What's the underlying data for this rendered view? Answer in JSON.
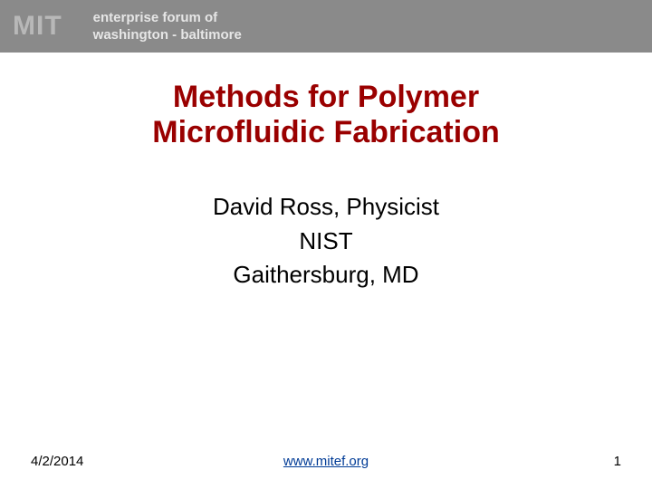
{
  "header": {
    "band_bg": "#8a8a8a",
    "mit_text": "MIT",
    "mit_color": "#b8b8b8",
    "mit_fontsize": 30,
    "forum_line1": "enterprise forum of",
    "forum_line2": "washington - baltimore",
    "forum_color": "#e6e6e6",
    "forum_fontsize": 15
  },
  "title": {
    "line1": "Methods for Polymer",
    "line2": "Microfluidic Fabrication",
    "color": "#9a0000",
    "fontsize": 34
  },
  "subtitle": {
    "line1": "David Ross, Physicist",
    "line2": "NIST",
    "line3": "Gaithersburg, MD",
    "color": "#000000",
    "fontsize": 26
  },
  "footer": {
    "date": "4/2/2014",
    "link_text": "www.mitef.org",
    "link_color": "#003b96",
    "page_number": "1",
    "text_color": "#000000",
    "fontsize": 15
  },
  "background_color": "#ffffff"
}
